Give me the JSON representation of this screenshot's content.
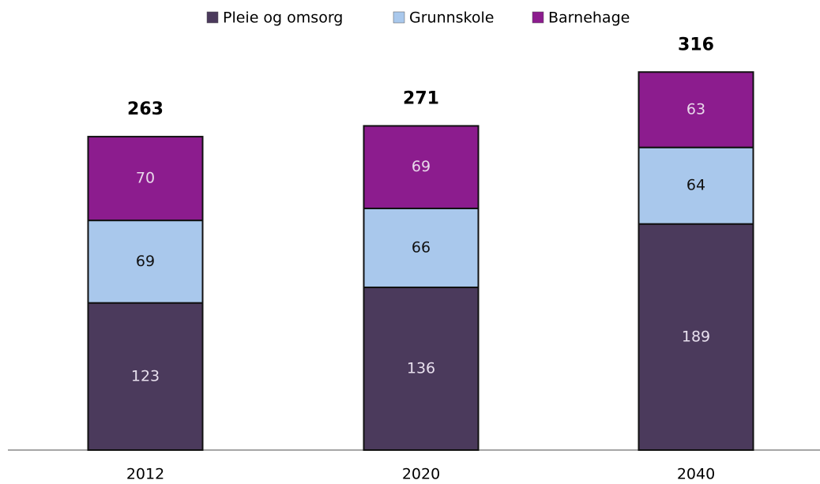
{
  "chart_data": {
    "type": "stacked_bar",
    "categories": [
      "2012",
      "2020",
      "2040"
    ],
    "series": [
      {
        "name": "Pleie og omsorg",
        "color": "#4b3a5c",
        "values": [
          123,
          136,
          189
        ]
      },
      {
        "name": "Grunnskole",
        "color": "#a9c8ec",
        "values": [
          69,
          66,
          64
        ]
      },
      {
        "name": "Barnehage",
        "color": "#8c1c8e",
        "values": [
          70,
          69,
          63
        ]
      }
    ],
    "totals": [
      263,
      271,
      316
    ],
    "legend": "top"
  }
}
